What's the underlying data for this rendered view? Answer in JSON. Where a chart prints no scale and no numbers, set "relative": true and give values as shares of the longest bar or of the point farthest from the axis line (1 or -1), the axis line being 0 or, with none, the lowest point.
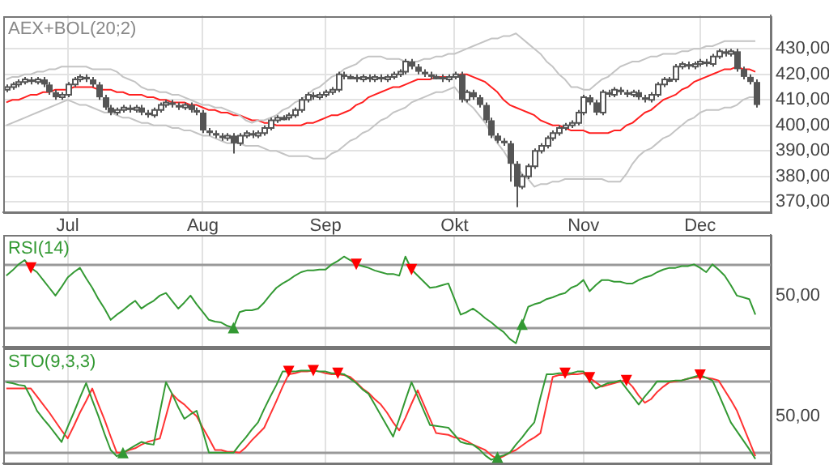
{
  "chart_data": [
    {
      "type": "candlestick",
      "title": "AEX+BOL(20;2)",
      "color": "#555555",
      "categories": [
        null,
        null,
        null,
        null,
        null,
        null,
        null,
        null,
        null,
        null,
        "Jul",
        null,
        null,
        null,
        null,
        null,
        null,
        null,
        null,
        null,
        null,
        null,
        null,
        null,
        null,
        null,
        null,
        null,
        null,
        null,
        null,
        null,
        "Aug",
        null,
        null,
        null,
        null,
        null,
        null,
        null,
        null,
        null,
        null,
        null,
        null,
        null,
        null,
        null,
        null,
        null,
        null,
        null,
        "Sep",
        null,
        null,
        null,
        null,
        null,
        null,
        null,
        null,
        null,
        null,
        null,
        null,
        null,
        null,
        null,
        null,
        null,
        null,
        null,
        null,
        "Okt",
        null,
        null,
        null,
        null,
        null,
        null,
        null,
        null,
        null,
        null,
        null,
        null,
        null,
        null,
        null,
        null,
        null,
        null,
        null,
        null,
        "Nov",
        null,
        null,
        null,
        null,
        null,
        null,
        null,
        null,
        null,
        null,
        null,
        null,
        null,
        null,
        null,
        null,
        null,
        null,
        "Dec",
        null,
        null,
        null,
        null,
        null,
        null,
        null,
        null,
        null
      ],
      "ohlc": [
        [
          414,
          416,
          413,
          415
        ],
        [
          415,
          417,
          414,
          416
        ],
        [
          416,
          418,
          415,
          417
        ],
        [
          417,
          419,
          416,
          418
        ],
        [
          418,
          419,
          416,
          417
        ],
        [
          417,
          419,
          416,
          418
        ],
        [
          418,
          419,
          415,
          416
        ],
        [
          416,
          417,
          412,
          413
        ],
        [
          413,
          414,
          410,
          411
        ],
        [
          411,
          413,
          410,
          412
        ],
        [
          412,
          417,
          411,
          416
        ],
        [
          416,
          419,
          415,
          418
        ],
        [
          418,
          420,
          417,
          419
        ],
        [
          419,
          420,
          417,
          418
        ],
        [
          418,
          419,
          415,
          416
        ],
        [
          416,
          417,
          410,
          411
        ],
        [
          411,
          412,
          406,
          407
        ],
        [
          407,
          408,
          404,
          405
        ],
        [
          405,
          407,
          404,
          406
        ],
        [
          406,
          408,
          405,
          407
        ],
        [
          407,
          408,
          405,
          406
        ],
        [
          406,
          408,
          405,
          407
        ],
        [
          407,
          408,
          404,
          405
        ],
        [
          405,
          406,
          403,
          404
        ],
        [
          404,
          407,
          403,
          406
        ],
        [
          406,
          409,
          405,
          408
        ],
        [
          408,
          410,
          407,
          409
        ],
        [
          409,
          410,
          407,
          408
        ],
        [
          408,
          409,
          406,
          407
        ],
        [
          407,
          409,
          406,
          408
        ],
        [
          408,
          409,
          405,
          406
        ],
        [
          406,
          407,
          404,
          405
        ],
        [
          405,
          406,
          397,
          398
        ],
        [
          398,
          399,
          396,
          397
        ],
        [
          397,
          398,
          395,
          396
        ],
        [
          396,
          397,
          394,
          395
        ],
        [
          395,
          397,
          394,
          396
        ],
        [
          396,
          397,
          389,
          393
        ],
        [
          393,
          397,
          392,
          396
        ],
        [
          396,
          398,
          395,
          397
        ],
        [
          397,
          398,
          395,
          396
        ],
        [
          396,
          398,
          395,
          397
        ],
        [
          397,
          400,
          396,
          399
        ],
        [
          399,
          403,
          398,
          402
        ],
        [
          402,
          404,
          401,
          403
        ],
        [
          403,
          404,
          402,
          403
        ],
        [
          403,
          405,
          402,
          404
        ],
        [
          404,
          407,
          403,
          406
        ],
        [
          406,
          411,
          405,
          410
        ],
        [
          410,
          413,
          409,
          412
        ],
        [
          412,
          413,
          410,
          411
        ],
        [
          411,
          413,
          410,
          412
        ],
        [
          412,
          414,
          411,
          413
        ],
        [
          413,
          415,
          412,
          414
        ],
        [
          414,
          421,
          413,
          420
        ],
        [
          420,
          421,
          418,
          419
        ],
        [
          419,
          420,
          418,
          419
        ],
        [
          419,
          420,
          417,
          418
        ],
        [
          418,
          420,
          417,
          419
        ],
        [
          419,
          420,
          417,
          418
        ],
        [
          418,
          420,
          417,
          419
        ],
        [
          419,
          420,
          417,
          418
        ],
        [
          418,
          420,
          417,
          419
        ],
        [
          419,
          421,
          418,
          420
        ],
        [
          420,
          422,
          419,
          421
        ],
        [
          421,
          426,
          420,
          425
        ],
        [
          425,
          426,
          422,
          423
        ],
        [
          423,
          424,
          420,
          421
        ],
        [
          421,
          422,
          419,
          420
        ],
        [
          420,
          421,
          418,
          419
        ],
        [
          419,
          420,
          418,
          419
        ],
        [
          419,
          420,
          417,
          418
        ],
        [
          418,
          420,
          417,
          419
        ],
        [
          419,
          421,
          418,
          420
        ],
        [
          420,
          421,
          409,
          410
        ],
        [
          410,
          414,
          409,
          413
        ],
        [
          413,
          414,
          410,
          411
        ],
        [
          411,
          412,
          407,
          408
        ],
        [
          408,
          409,
          401,
          402
        ],
        [
          402,
          403,
          395,
          396
        ],
        [
          396,
          397,
          393,
          394
        ],
        [
          394,
          395,
          392,
          393
        ],
        [
          393,
          394,
          378,
          385
        ],
        [
          385,
          386,
          368,
          376
        ],
        [
          376,
          381,
          375,
          380
        ],
        [
          380,
          385,
          379,
          384
        ],
        [
          384,
          391,
          383,
          390
        ],
        [
          390,
          393,
          389,
          392
        ],
        [
          392,
          396,
          391,
          395
        ],
        [
          395,
          398,
          394,
          397
        ],
        [
          397,
          400,
          396,
          399
        ],
        [
          399,
          401,
          398,
          400
        ],
        [
          400,
          402,
          399,
          401
        ],
        [
          401,
          406,
          400,
          405
        ],
        [
          405,
          412,
          404,
          411
        ],
        [
          411,
          412,
          408,
          409
        ],
        [
          409,
          410,
          404,
          405
        ],
        [
          405,
          414,
          404,
          413
        ],
        [
          413,
          414,
          411,
          412
        ],
        [
          412,
          415,
          411,
          414
        ],
        [
          414,
          415,
          412,
          413
        ],
        [
          413,
          414,
          411,
          412
        ],
        [
          412,
          414,
          411,
          413
        ],
        [
          413,
          414,
          410,
          411
        ],
        [
          411,
          412,
          409,
          410
        ],
        [
          410,
          413,
          409,
          412
        ],
        [
          412,
          417,
          411,
          416
        ],
        [
          416,
          419,
          415,
          418
        ],
        [
          418,
          419,
          417,
          418
        ],
        [
          418,
          424,
          417,
          423
        ],
        [
          423,
          425,
          422,
          424
        ],
        [
          424,
          425,
          422,
          423
        ],
        [
          423,
          425,
          422,
          424
        ],
        [
          424,
          426,
          423,
          425
        ],
        [
          425,
          426,
          423,
          424
        ],
        [
          424,
          428,
          423,
          427
        ],
        [
          427,
          430,
          426,
          429
        ],
        [
          429,
          430,
          427,
          428
        ],
        [
          428,
          430,
          427,
          429
        ],
        [
          429,
          430,
          421,
          422
        ],
        [
          422,
          423,
          418,
          419
        ],
        [
          419,
          420,
          416,
          417
        ],
        [
          417,
          418,
          407,
          408
        ]
      ],
      "series": [
        {
          "type": "line",
          "color": "#c4c4c4",
          "values": [
            418,
            419,
            419,
            420,
            420,
            421,
            421,
            422,
            422,
            423,
            423,
            423,
            423,
            423,
            422,
            422,
            422,
            422,
            421,
            419,
            418,
            417,
            415,
            414,
            414,
            413,
            413,
            412,
            412,
            411,
            410,
            409,
            408,
            408,
            407,
            407,
            406,
            405,
            404,
            402,
            401,
            402,
            402,
            403,
            404,
            406,
            407,
            409,
            410,
            412,
            414,
            415,
            417,
            419,
            420,
            422,
            423,
            424,
            426,
            427,
            427,
            427,
            426,
            426,
            426,
            425,
            425,
            425,
            426,
            426,
            427,
            427,
            428,
            428,
            429,
            430,
            431,
            432,
            433,
            434,
            434,
            435,
            435,
            436,
            434,
            432,
            430,
            428,
            425,
            423,
            420,
            418,
            415,
            415,
            414,
            414,
            416,
            418,
            419,
            421,
            423,
            424,
            425,
            425,
            426,
            427,
            427,
            428,
            428,
            428,
            429,
            429,
            430,
            430,
            431,
            431,
            432,
            433,
            433,
            433,
            433,
            433,
            433
          ]
        },
        {
          "type": "line",
          "color": "#c4c4c4",
          "values": [
            400,
            401,
            402,
            403,
            404,
            405,
            406,
            407,
            408,
            409,
            410,
            409,
            408,
            408,
            407,
            406,
            405,
            405,
            404,
            403,
            403,
            402,
            401,
            401,
            400,
            400,
            400,
            399,
            399,
            398,
            398,
            397,
            396,
            396,
            395,
            394,
            393,
            393,
            393,
            392,
            392,
            392,
            391,
            390,
            390,
            389,
            388,
            388,
            388,
            388,
            387,
            387,
            387,
            389,
            390,
            392,
            394,
            395,
            397,
            398,
            400,
            402,
            403,
            405,
            406,
            407,
            409,
            410,
            411,
            412,
            413,
            413,
            414,
            415,
            412,
            409,
            407,
            404,
            401,
            397,
            393,
            390,
            386,
            384,
            381,
            379,
            376,
            377,
            377,
            378,
            378,
            379,
            379,
            379,
            379,
            379,
            379,
            379,
            378,
            378,
            378,
            381,
            385,
            388,
            390,
            391,
            393,
            395,
            396,
            398,
            400,
            402,
            403,
            405,
            406,
            406,
            406,
            407,
            407,
            408,
            410,
            411,
            411
          ]
        },
        {
          "type": "line",
          "color": "#ff2020",
          "values": [
            409,
            410,
            410,
            411,
            412,
            412,
            413,
            413,
            414,
            414,
            414,
            415,
            415,
            415,
            415,
            414,
            414,
            414,
            413,
            413,
            412,
            412,
            412,
            411,
            411,
            410,
            410,
            409,
            409,
            409,
            408,
            408,
            407,
            406,
            406,
            405,
            405,
            404,
            404,
            403,
            402,
            402,
            401,
            401,
            400,
            400,
            400,
            400,
            400,
            401,
            401,
            402,
            403,
            404,
            404,
            405,
            406,
            408,
            409,
            411,
            412,
            413,
            414,
            415,
            415,
            416,
            417,
            418,
            418,
            418,
            419,
            419,
            419,
            419,
            420,
            420,
            419,
            418,
            417,
            415,
            413,
            410,
            408,
            407,
            406,
            405,
            404,
            402,
            401,
            400,
            400,
            399,
            398,
            398,
            398,
            397,
            397,
            397,
            397,
            398,
            398,
            400,
            401,
            403,
            405,
            406,
            408,
            410,
            411,
            412,
            414,
            415,
            417,
            418,
            419,
            420,
            421,
            422,
            422,
            423,
            422,
            422,
            421
          ]
        }
      ],
      "ylim": [
        366,
        443
      ],
      "yticks": [
        {
          "value": 370,
          "label": "370,00"
        },
        {
          "value": 380,
          "label": "380,00"
        },
        {
          "value": 390,
          "label": "390,00"
        },
        {
          "value": 400,
          "label": "400,00"
        },
        {
          "value": 410,
          "label": "410,00"
        },
        {
          "value": 420,
          "label": "420,00"
        },
        {
          "value": 430,
          "label": "430,00"
        }
      ],
      "grid": true
    },
    {
      "type": "line",
      "title": "RSI(14)",
      "relative": true,
      "series": [
        {
          "color": "#339933",
          "values": [
            0.78,
            0.84,
            0.91,
            0.96,
            0.87,
            0.82,
            0.73,
            0.64,
            0.55,
            0.65,
            0.76,
            0.82,
            0.87,
            0.75,
            0.64,
            0.51,
            0.4,
            0.27,
            0.33,
            0.38,
            0.44,
            0.49,
            0.4,
            0.45,
            0.49,
            0.55,
            0.58,
            0.49,
            0.4,
            0.47,
            0.55,
            0.45,
            0.36,
            0.27,
            0.25,
            0.24,
            0.2,
            0.18,
            0.36,
            0.38,
            0.38,
            0.4,
            0.47,
            0.56,
            0.64,
            0.69,
            0.73,
            0.78,
            0.82,
            0.84,
            0.84,
            0.85,
            0.85,
            0.91,
            0.95,
            1,
            0.96,
            0.91,
            0.89,
            0.87,
            0.84,
            0.82,
            0.8,
            0.8,
            0.78,
            1,
            0.85,
            0.78,
            0.71,
            0.64,
            0.65,
            0.67,
            0.69,
            0.51,
            0.33,
            0.36,
            0.4,
            0.35,
            0.29,
            0.24,
            0.18,
            0.13,
            0.05,
            0,
            0.22,
            0.42,
            0.45,
            0.47,
            0.51,
            0.53,
            0.56,
            0.58,
            0.64,
            0.67,
            0.73,
            0.6,
            0.67,
            0.73,
            0.73,
            0.71,
            0.71,
            0.69,
            0.69,
            0.73,
            0.76,
            0.78,
            0.82,
            0.85,
            0.87,
            0.87,
            0.89,
            0.89,
            0.91,
            0.87,
            0.82,
            0.91,
            0.85,
            0.78,
            0.67,
            0.55,
            0.53,
            0.51,
            0.33
          ]
        },
        {
          "type": "scatter",
          "marker": "triangle",
          "color": "#ff0000",
          "values": [
            null,
            null,
            null,
            null,
            0.87,
            null,
            null,
            null,
            null,
            null,
            null,
            null,
            null,
            null,
            null,
            null,
            null,
            null,
            null,
            null,
            null,
            null,
            null,
            null,
            null,
            null,
            null,
            null,
            null,
            null,
            null,
            null,
            null,
            null,
            null,
            null,
            null,
            null,
            null,
            null,
            null,
            null,
            null,
            null,
            null,
            null,
            null,
            null,
            null,
            null,
            null,
            null,
            null,
            null,
            null,
            null,
            null,
            0.91,
            null,
            null,
            null,
            null,
            null,
            null,
            null,
            null,
            0.85,
            null,
            null,
            null,
            null,
            null,
            null,
            null,
            null,
            null,
            null,
            null,
            null,
            null,
            null,
            null,
            null,
            null,
            null,
            null,
            null,
            null,
            null,
            null,
            null,
            null,
            null,
            null,
            null,
            null,
            null,
            null,
            null,
            null,
            null,
            null,
            null,
            null,
            null,
            null,
            null,
            null,
            null,
            null,
            null,
            null,
            null,
            null,
            null,
            null,
            null,
            null,
            null,
            null,
            null,
            null,
            null
          ]
        },
        {
          "type": "scatter",
          "marker": "triangle",
          "color": "#339933",
          "values": [
            null,
            null,
            null,
            null,
            null,
            null,
            null,
            null,
            null,
            null,
            null,
            null,
            null,
            null,
            null,
            null,
            null,
            null,
            null,
            null,
            null,
            null,
            null,
            null,
            null,
            null,
            null,
            null,
            null,
            null,
            null,
            null,
            null,
            null,
            null,
            null,
            null,
            0.18,
            null,
            null,
            null,
            null,
            null,
            null,
            null,
            null,
            null,
            null,
            null,
            null,
            null,
            null,
            null,
            null,
            null,
            null,
            null,
            null,
            null,
            null,
            null,
            null,
            null,
            null,
            null,
            null,
            null,
            null,
            null,
            null,
            null,
            null,
            null,
            null,
            null,
            null,
            null,
            null,
            null,
            null,
            null,
            null,
            null,
            null,
            0.22,
            null,
            null,
            null,
            null,
            null,
            null,
            null,
            null,
            null,
            null,
            null,
            null,
            null,
            null,
            null,
            null,
            null,
            null,
            null,
            null,
            null,
            null,
            null,
            null,
            null,
            null,
            null,
            null,
            null,
            null,
            null,
            null,
            null,
            null,
            null,
            null,
            null,
            null
          ]
        }
      ],
      "ref_lines": [
        {
          "axis": "y",
          "value": 0.18,
          "color": "#999999"
        },
        {
          "axis": "y",
          "value": 0.91,
          "color": "#999999"
        }
      ],
      "annotations": [
        "50,00"
      ],
      "grid": "x",
      "tick_labels": false
    },
    {
      "type": "line",
      "title": "STO(9,3,3)",
      "relative": true,
      "series": [
        {
          "color": "#339933",
          "values": [
            0.87,
            0.86,
            0.84,
            0.83,
            0.7,
            0.55,
            0.46,
            0.38,
            0.29,
            0.2,
            0.37,
            0.53,
            0.7,
            0.86,
            0.67,
            0.49,
            0.29,
            0.11,
            0.04,
            0.08,
            0.12,
            0.16,
            0.2,
            0.18,
            0.17,
            0.53,
            0.87,
            0.74,
            0.59,
            0.46,
            0.51,
            0.55,
            0.32,
            0.08,
            0.08,
            0.08,
            0.08,
            0.08,
            0.17,
            0.25,
            0.34,
            0.42,
            0.57,
            0.71,
            0.84,
            0.99,
            0.99,
            0.99,
            1,
            1,
            1,
            0.99,
            0.99,
            0.97,
            0.97,
            0.96,
            0.91,
            0.86,
            0.79,
            0.74,
            0.62,
            0.5,
            0.38,
            0.26,
            0.46,
            0.67,
            0.87,
            0.71,
            0.55,
            0.39,
            0.38,
            0.37,
            0.36,
            0.28,
            0.2,
            0.18,
            0.17,
            0.12,
            0.05,
            0,
            0.03,
            0.05,
            0.08,
            0.17,
            0.25,
            0.34,
            0.42,
            0.7,
            0.96,
            0.96,
            0.97,
            0.97,
            0.97,
            0.99,
            0.99,
            0.89,
            0.8,
            0.83,
            0.86,
            0.87,
            0.89,
            0.8,
            0.71,
            0.62,
            0.71,
            0.79,
            0.88,
            0.88,
            0.88,
            0.89,
            0.89,
            0.91,
            0.93,
            0.95,
            0.92,
            0.89,
            0.74,
            0.58,
            0.42,
            0.32,
            0.22,
            0.12,
            0.01
          ]
        },
        {
          "color": "#ff3333",
          "values": [
            0.8,
            0.8,
            0.8,
            0.8,
            0.8,
            0.71,
            0.62,
            0.53,
            0.43,
            0.33,
            0.24,
            0.38,
            0.53,
            0.66,
            0.8,
            0.62,
            0.45,
            0.26,
            0.08,
            0.08,
            0.11,
            0.13,
            0.17,
            0.2,
            0.22,
            0.24,
            0.49,
            0.74,
            0.67,
            0.62,
            0.55,
            0.49,
            0.36,
            0.24,
            0.11,
            0.11,
            0.09,
            0.09,
            0.08,
            0.14,
            0.22,
            0.29,
            0.36,
            0.51,
            0.66,
            0.82,
            0.96,
            0.97,
            0.99,
            0.99,
            1,
            0.99,
            0.97,
            0.96,
            0.96,
            0.95,
            0.93,
            0.87,
            0.8,
            0.75,
            0.68,
            0.62,
            0.53,
            0.42,
            0.33,
            0.47,
            0.63,
            0.78,
            0.62,
            0.46,
            0.3,
            0.29,
            0.28,
            0.25,
            0.24,
            0.21,
            0.17,
            0.14,
            0.11,
            0.05,
            0.01,
            0.04,
            0.08,
            0.11,
            0.16,
            0.21,
            0.25,
            0.3,
            0.62,
            0.93,
            0.95,
            0.95,
            0.96,
            0.96,
            0.97,
            0.92,
            0.87,
            0.82,
            0.84,
            0.86,
            0.88,
            0.89,
            0.82,
            0.72,
            0.64,
            0.68,
            0.76,
            0.82,
            0.87,
            0.88,
            0.89,
            0.91,
            0.92,
            0.93,
            0.92,
            0.91,
            0.89,
            0.78,
            0.67,
            0.55,
            0.38,
            0.21,
            0.04
          ]
        },
        {
          "type": "scatter",
          "marker": "triangle",
          "color": "#ff0000",
          "values": [
            null,
            null,
            null,
            null,
            null,
            null,
            null,
            null,
            null,
            null,
            null,
            null,
            null,
            null,
            null,
            null,
            null,
            null,
            null,
            null,
            null,
            null,
            null,
            null,
            null,
            null,
            null,
            null,
            null,
            null,
            null,
            null,
            null,
            null,
            null,
            null,
            null,
            null,
            null,
            null,
            null,
            null,
            null,
            null,
            null,
            null,
            0.99,
            null,
            null,
            null,
            1,
            null,
            null,
            null,
            0.97,
            null,
            null,
            null,
            null,
            null,
            null,
            null,
            null,
            null,
            null,
            null,
            null,
            null,
            null,
            null,
            null,
            null,
            null,
            null,
            null,
            null,
            null,
            null,
            null,
            null,
            null,
            null,
            null,
            null,
            null,
            null,
            null,
            null,
            null,
            null,
            null,
            0.97,
            null,
            null,
            null,
            0.92,
            null,
            null,
            null,
            null,
            null,
            0.89,
            null,
            null,
            null,
            null,
            null,
            null,
            null,
            null,
            null,
            null,
            null,
            0.95,
            null,
            null,
            null,
            null,
            null,
            null,
            null,
            null,
            null
          ]
        },
        {
          "type": "scatter",
          "marker": "triangle",
          "color": "#339933",
          "values": [
            null,
            null,
            null,
            null,
            null,
            null,
            null,
            null,
            null,
            null,
            null,
            null,
            null,
            null,
            null,
            null,
            null,
            null,
            null,
            0.08,
            null,
            null,
            null,
            null,
            null,
            null,
            null,
            null,
            null,
            null,
            null,
            null,
            null,
            null,
            null,
            null,
            null,
            null,
            null,
            null,
            null,
            null,
            null,
            null,
            null,
            null,
            null,
            null,
            null,
            null,
            null,
            null,
            null,
            null,
            null,
            null,
            null,
            null,
            null,
            null,
            null,
            null,
            null,
            null,
            null,
            null,
            null,
            null,
            null,
            null,
            null,
            null,
            null,
            null,
            null,
            null,
            null,
            null,
            null,
            null,
            0.03,
            null,
            null,
            null,
            null,
            null,
            null,
            null,
            null,
            null,
            null,
            null,
            null,
            null,
            null,
            null,
            null,
            null,
            null,
            null,
            null,
            null,
            null,
            null,
            null,
            null,
            null,
            null,
            null,
            null,
            null,
            null,
            null,
            null,
            null,
            null,
            null,
            null,
            null,
            null,
            null,
            null,
            null
          ]
        }
      ],
      "ref_lines": [
        {
          "axis": "y",
          "value": 0.09,
          "color": "#999999"
        },
        {
          "axis": "y",
          "value": 0.88,
          "color": "#999999"
        }
      ],
      "annotations": [
        "50,00"
      ],
      "grid": "x",
      "tick_labels": false
    }
  ]
}
